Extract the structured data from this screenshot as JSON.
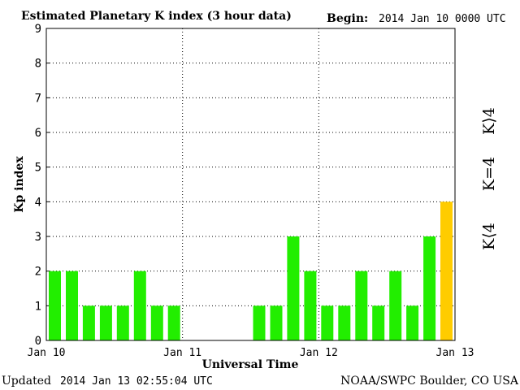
{
  "header": {
    "title": "Estimated Planetary K index (3 hour data)",
    "begin_label": "Begin:",
    "begin_value": "2014 Jan 10 0000 UTC"
  },
  "footer": {
    "updated_label": "Updated",
    "updated_value": "2014 Jan 13 02:55:04 UTC",
    "source": "NOAA/SWPC Boulder, CO USA"
  },
  "legend": {
    "low": "K⟨4",
    "mid": "K=4",
    "high": "K⟩4",
    "colors": {
      "low": "#22ee00",
      "mid": "#ffcc00",
      "high": "#ee3311"
    }
  },
  "chart_data": {
    "type": "bar",
    "title": "Estimated Planetary K index (3 hour data)",
    "xlabel": "Universal Time",
    "ylabel": "Kp index",
    "ylim": [
      0,
      9
    ],
    "yticks": [
      "0",
      "1",
      "2",
      "3",
      "4",
      "5",
      "6",
      "7",
      "8",
      "9"
    ],
    "xticks": [
      "Jan 10",
      "Jan 11",
      "Jan 12",
      "Jan 13"
    ],
    "grid": true,
    "values": [
      2,
      2,
      1,
      1,
      1,
      2,
      1,
      1,
      null,
      null,
      null,
      null,
      1,
      1,
      3,
      2,
      1,
      1,
      2,
      1,
      2,
      1,
      3,
      4
    ],
    "colors": [
      "#22ee00",
      "#22ee00",
      "#22ee00",
      "#22ee00",
      "#22ee00",
      "#22ee00",
      "#22ee00",
      "#22ee00",
      null,
      null,
      null,
      null,
      "#22ee00",
      "#22ee00",
      "#22ee00",
      "#22ee00",
      "#22ee00",
      "#22ee00",
      "#22ee00",
      "#22ee00",
      "#22ee00",
      "#22ee00",
      "#22ee00",
      "#ffcc00"
    ]
  }
}
